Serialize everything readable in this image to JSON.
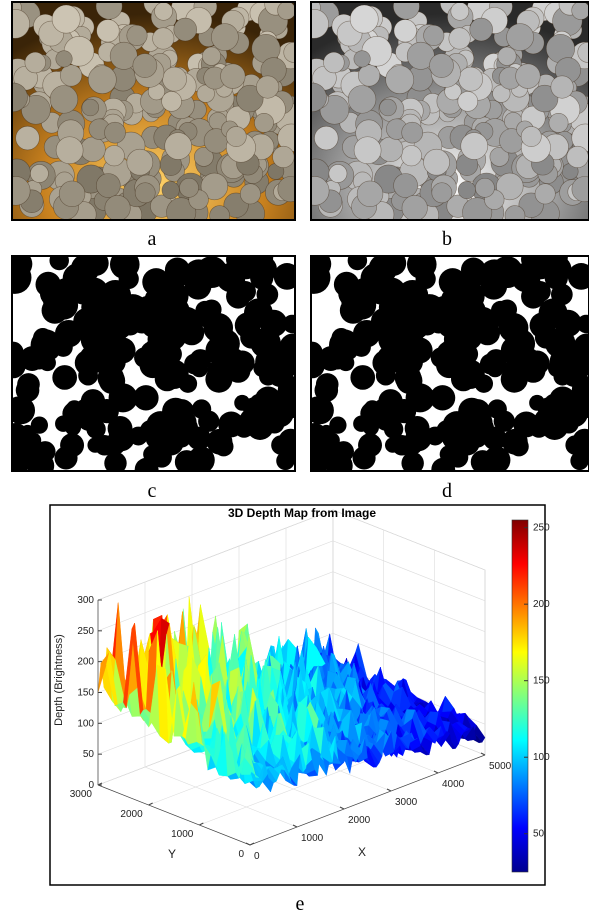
{
  "panels": [
    {
      "label": "a"
    },
    {
      "label": "b"
    },
    {
      "label": "c"
    },
    {
      "label": "d"
    }
  ],
  "chart_data": {
    "type": "surface",
    "title": "3D Depth Map from Image",
    "label": "e",
    "zlabel": "Depth (Brightness)",
    "xlabel": "X",
    "ylabel": "Y",
    "xlim": [
      0,
      5000
    ],
    "xticks": [
      0,
      1000,
      2000,
      3000,
      4000,
      5000
    ],
    "ylim": [
      0,
      3000
    ],
    "yticks": [
      0,
      1000,
      2000,
      3000
    ],
    "zlim": [
      0,
      300
    ],
    "zticks": [
      0,
      50,
      100,
      150,
      200,
      250,
      300
    ],
    "clim": [
      25,
      255
    ],
    "cticks": [
      50,
      100,
      150,
      200,
      250
    ],
    "colormap": "jet",
    "grid": true
  }
}
